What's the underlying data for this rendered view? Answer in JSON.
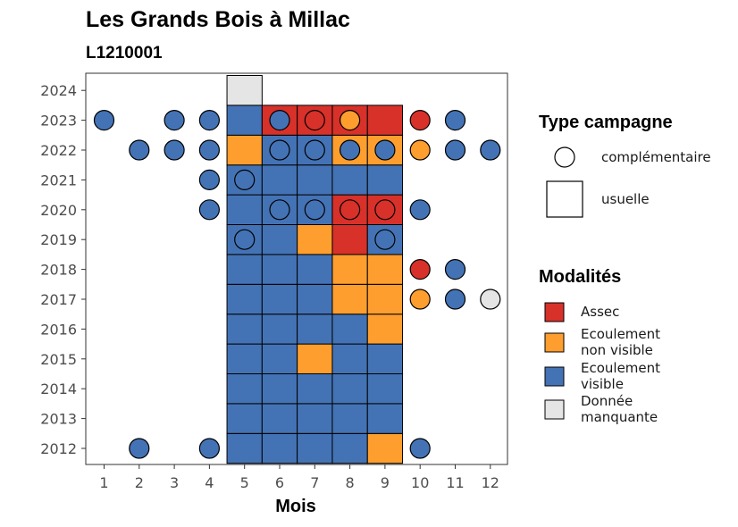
{
  "title": "Les Grands Bois à Millac",
  "subtitle": "L1210001",
  "colors": {
    "Assec": "#d7312a",
    "Ecoulement non visible": "#fe9e2e",
    "Ecoulement visible": "#4473b5",
    "Donnée manquante": "#e5e5e5"
  },
  "chart_data": {
    "type": "heatmap",
    "xlabel": "Mois",
    "ylabel": "",
    "x_ticks": [
      "1",
      "2",
      "3",
      "4",
      "5",
      "6",
      "7",
      "8",
      "9",
      "10",
      "11",
      "12"
    ],
    "y_ticks": [
      "2012",
      "2013",
      "2014",
      "2015",
      "2016",
      "2017",
      "2018",
      "2019",
      "2020",
      "2021",
      "2022",
      "2023",
      "2024"
    ],
    "legend_type": {
      "title": "Type campagne",
      "items": [
        {
          "shape": "circle",
          "label": "complémentaire"
        },
        {
          "shape": "square",
          "label": "usuelle"
        }
      ]
    },
    "legend_modalites": {
      "title": "Modalités",
      "items": [
        {
          "key": "Assec",
          "lines": [
            "Assec"
          ]
        },
        {
          "key": "Ecoulement non visible",
          "lines": [
            "Ecoulement",
            "non visible"
          ]
        },
        {
          "key": "Ecoulement visible",
          "lines": [
            "Ecoulement",
            "visible"
          ]
        },
        {
          "key": "Donnée manquante",
          "lines": [
            "Donnée",
            "manquante"
          ]
        }
      ]
    },
    "usuelle": [
      {
        "year": 2012,
        "month": 5,
        "value": "Ecoulement visible"
      },
      {
        "year": 2012,
        "month": 6,
        "value": "Ecoulement visible"
      },
      {
        "year": 2012,
        "month": 7,
        "value": "Ecoulement visible"
      },
      {
        "year": 2012,
        "month": 8,
        "value": "Ecoulement visible"
      },
      {
        "year": 2012,
        "month": 9,
        "value": "Ecoulement non visible"
      },
      {
        "year": 2013,
        "month": 5,
        "value": "Ecoulement visible"
      },
      {
        "year": 2013,
        "month": 6,
        "value": "Ecoulement visible"
      },
      {
        "year": 2013,
        "month": 7,
        "value": "Ecoulement visible"
      },
      {
        "year": 2013,
        "month": 8,
        "value": "Ecoulement visible"
      },
      {
        "year": 2013,
        "month": 9,
        "value": "Ecoulement visible"
      },
      {
        "year": 2014,
        "month": 5,
        "value": "Ecoulement visible"
      },
      {
        "year": 2014,
        "month": 6,
        "value": "Ecoulement visible"
      },
      {
        "year": 2014,
        "month": 7,
        "value": "Ecoulement visible"
      },
      {
        "year": 2014,
        "month": 8,
        "value": "Ecoulement visible"
      },
      {
        "year": 2014,
        "month": 9,
        "value": "Ecoulement visible"
      },
      {
        "year": 2015,
        "month": 5,
        "value": "Ecoulement visible"
      },
      {
        "year": 2015,
        "month": 6,
        "value": "Ecoulement visible"
      },
      {
        "year": 2015,
        "month": 7,
        "value": "Ecoulement non visible"
      },
      {
        "year": 2015,
        "month": 8,
        "value": "Ecoulement visible"
      },
      {
        "year": 2015,
        "month": 9,
        "value": "Ecoulement visible"
      },
      {
        "year": 2016,
        "month": 5,
        "value": "Ecoulement visible"
      },
      {
        "year": 2016,
        "month": 6,
        "value": "Ecoulement visible"
      },
      {
        "year": 2016,
        "month": 7,
        "value": "Ecoulement visible"
      },
      {
        "year": 2016,
        "month": 8,
        "value": "Ecoulement visible"
      },
      {
        "year": 2016,
        "month": 9,
        "value": "Ecoulement non visible"
      },
      {
        "year": 2017,
        "month": 5,
        "value": "Ecoulement visible"
      },
      {
        "year": 2017,
        "month": 6,
        "value": "Ecoulement visible"
      },
      {
        "year": 2017,
        "month": 7,
        "value": "Ecoulement visible"
      },
      {
        "year": 2017,
        "month": 8,
        "value": "Ecoulement non visible"
      },
      {
        "year": 2017,
        "month": 9,
        "value": "Ecoulement non visible"
      },
      {
        "year": 2018,
        "month": 5,
        "value": "Ecoulement visible"
      },
      {
        "year": 2018,
        "month": 6,
        "value": "Ecoulement visible"
      },
      {
        "year": 2018,
        "month": 7,
        "value": "Ecoulement visible"
      },
      {
        "year": 2018,
        "month": 8,
        "value": "Ecoulement non visible"
      },
      {
        "year": 2018,
        "month": 9,
        "value": "Ecoulement non visible"
      },
      {
        "year": 2019,
        "month": 5,
        "value": "Ecoulement visible"
      },
      {
        "year": 2019,
        "month": 6,
        "value": "Ecoulement visible"
      },
      {
        "year": 2019,
        "month": 7,
        "value": "Ecoulement non visible"
      },
      {
        "year": 2019,
        "month": 8,
        "value": "Assec"
      },
      {
        "year": 2019,
        "month": 9,
        "value": "Ecoulement visible"
      },
      {
        "year": 2020,
        "month": 5,
        "value": "Ecoulement visible"
      },
      {
        "year": 2020,
        "month": 6,
        "value": "Ecoulement visible"
      },
      {
        "year": 2020,
        "month": 7,
        "value": "Ecoulement visible"
      },
      {
        "year": 2020,
        "month": 8,
        "value": "Assec"
      },
      {
        "year": 2020,
        "month": 9,
        "value": "Assec"
      },
      {
        "year": 2021,
        "month": 5,
        "value": "Ecoulement visible"
      },
      {
        "year": 2021,
        "month": 6,
        "value": "Ecoulement visible"
      },
      {
        "year": 2021,
        "month": 7,
        "value": "Ecoulement visible"
      },
      {
        "year": 2021,
        "month": 8,
        "value": "Ecoulement visible"
      },
      {
        "year": 2021,
        "month": 9,
        "value": "Ecoulement visible"
      },
      {
        "year": 2022,
        "month": 5,
        "value": "Ecoulement non visible"
      },
      {
        "year": 2022,
        "month": 6,
        "value": "Ecoulement visible"
      },
      {
        "year": 2022,
        "month": 7,
        "value": "Ecoulement visible"
      },
      {
        "year": 2022,
        "month": 8,
        "value": "Ecoulement non visible"
      },
      {
        "year": 2022,
        "month": 9,
        "value": "Ecoulement non visible"
      },
      {
        "year": 2023,
        "month": 5,
        "value": "Ecoulement visible"
      },
      {
        "year": 2023,
        "month": 6,
        "value": "Assec"
      },
      {
        "year": 2023,
        "month": 7,
        "value": "Assec"
      },
      {
        "year": 2023,
        "month": 8,
        "value": "Assec"
      },
      {
        "year": 2023,
        "month": 9,
        "value": "Assec"
      },
      {
        "year": 2024,
        "month": 5,
        "value": "Donnée manquante"
      }
    ],
    "complementaire": [
      {
        "year": 2012,
        "month": 2,
        "value": "Ecoulement visible"
      },
      {
        "year": 2012,
        "month": 4,
        "value": "Ecoulement visible"
      },
      {
        "year": 2012,
        "month": 10,
        "value": "Ecoulement visible"
      },
      {
        "year": 2017,
        "month": 10,
        "value": "Ecoulement non visible"
      },
      {
        "year": 2017,
        "month": 11,
        "value": "Ecoulement visible"
      },
      {
        "year": 2017,
        "month": 12,
        "value": "Donnée manquante"
      },
      {
        "year": 2018,
        "month": 10,
        "value": "Assec"
      },
      {
        "year": 2018,
        "month": 11,
        "value": "Ecoulement visible"
      },
      {
        "year": 2019,
        "month": 5,
        "value": "Ecoulement visible"
      },
      {
        "year": 2019,
        "month": 9,
        "value": "Ecoulement visible"
      },
      {
        "year": 2020,
        "month": 4,
        "value": "Ecoulement visible"
      },
      {
        "year": 2020,
        "month": 6,
        "value": "Ecoulement visible"
      },
      {
        "year": 2020,
        "month": 7,
        "value": "Ecoulement visible"
      },
      {
        "year": 2020,
        "month": 8,
        "value": "Assec"
      },
      {
        "year": 2020,
        "month": 9,
        "value": "Assec"
      },
      {
        "year": 2020,
        "month": 10,
        "value": "Ecoulement visible"
      },
      {
        "year": 2021,
        "month": 4,
        "value": "Ecoulement visible"
      },
      {
        "year": 2021,
        "month": 5,
        "value": "Ecoulement visible"
      },
      {
        "year": 2022,
        "month": 2,
        "value": "Ecoulement visible"
      },
      {
        "year": 2022,
        "month": 3,
        "value": "Ecoulement visible"
      },
      {
        "year": 2022,
        "month": 4,
        "value": "Ecoulement visible"
      },
      {
        "year": 2022,
        "month": 6,
        "value": "Ecoulement visible"
      },
      {
        "year": 2022,
        "month": 7,
        "value": "Ecoulement visible"
      },
      {
        "year": 2022,
        "month": 8,
        "value": "Ecoulement visible"
      },
      {
        "year": 2022,
        "month": 9,
        "value": "Ecoulement visible"
      },
      {
        "year": 2022,
        "month": 10,
        "value": "Ecoulement non visible"
      },
      {
        "year": 2022,
        "month": 11,
        "value": "Ecoulement visible"
      },
      {
        "year": 2022,
        "month": 12,
        "value": "Ecoulement visible"
      },
      {
        "year": 2023,
        "month": 1,
        "value": "Ecoulement visible"
      },
      {
        "year": 2023,
        "month": 3,
        "value": "Ecoulement visible"
      },
      {
        "year": 2023,
        "month": 4,
        "value": "Ecoulement visible"
      },
      {
        "year": 2023,
        "month": 6,
        "value": "Ecoulement visible"
      },
      {
        "year": 2023,
        "month": 7,
        "value": "Assec"
      },
      {
        "year": 2023,
        "month": 8,
        "value": "Ecoulement non visible"
      },
      {
        "year": 2023,
        "month": 10,
        "value": "Assec"
      },
      {
        "year": 2023,
        "month": 11,
        "value": "Ecoulement visible"
      }
    ]
  }
}
